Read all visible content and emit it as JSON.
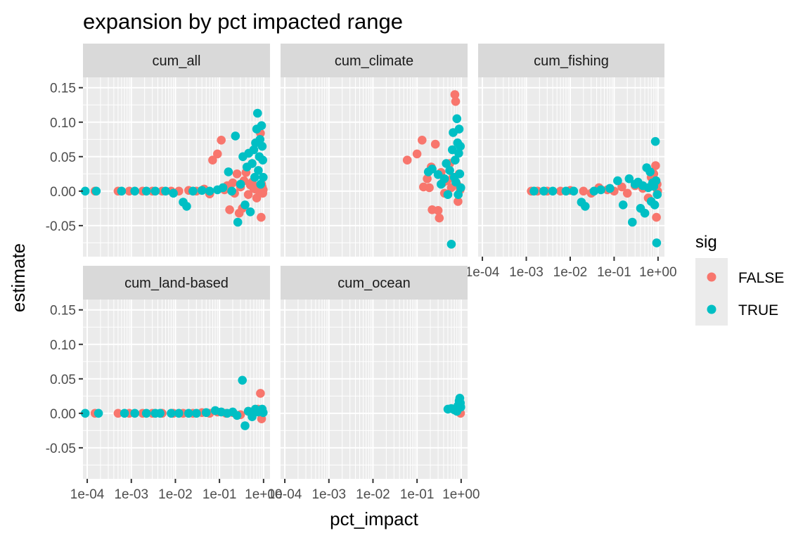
{
  "chart_data": {
    "type": "scatter",
    "title": "expansion by pct impacted range",
    "xlabel": "pct_impact",
    "ylabel": "estimate",
    "x_scale": "log10",
    "xlim": [
      8e-05,
      1.4
    ],
    "ylim": [
      -0.095,
      0.165
    ],
    "x_ticks": [
      0.0001,
      0.001,
      0.01,
      0.1,
      1
    ],
    "x_tick_labels": [
      "1e-04",
      "1e-03",
      "1e-02",
      "1e-01",
      "1e+00"
    ],
    "y_ticks": [
      -0.05,
      0.0,
      0.05,
      0.1,
      0.15
    ],
    "y_tick_labels": [
      "-0.05",
      "0.00",
      "0.05",
      "0.10",
      "0.15"
    ],
    "grid": true,
    "legend": {
      "title": "sig",
      "position": "right",
      "entries": [
        {
          "label": "FALSE",
          "color": "#F8766D"
        },
        {
          "label": "TRUE",
          "color": "#00BFC4"
        }
      ]
    },
    "facets": [
      {
        "name": "cum_all",
        "series": [
          {
            "name": "FALSE",
            "points": [
              [
                0.00015,
                0
              ],
              [
                0.0005,
                0
              ],
              [
                0.0009,
                0
              ],
              [
                0.0018,
                0
              ],
              [
                0.003,
                0
              ],
              [
                0.005,
                0
              ],
              [
                0.008,
                0
              ],
              [
                0.012,
                0
              ],
              [
                0.02,
                0.001
              ],
              [
                0.03,
                0
              ],
              [
                0.045,
                0.003
              ],
              [
                0.06,
                -0.004
              ],
              [
                0.07,
                0.045
              ],
              [
                0.09,
                0.054
              ],
              [
                0.11,
                0.074
              ],
              [
                0.13,
                0.002
              ],
              [
                0.15,
                0.008
              ],
              [
                0.17,
                -0.027
              ],
              [
                0.2,
                0.012
              ],
              [
                0.22,
                -0.003
              ],
              [
                0.25,
                0.025
              ],
              [
                0.28,
                -0.032
              ],
              [
                0.3,
                0.006
              ],
              [
                0.33,
                -0.025
              ],
              [
                0.36,
                0.015
              ],
              [
                0.4,
                0.027
              ],
              [
                0.45,
                -0.005
              ],
              [
                0.5,
                0.009
              ],
              [
                0.55,
                0.013
              ],
              [
                0.6,
                0.004
              ],
              [
                0.65,
                0.003
              ],
              [
                0.7,
                -0.01
              ],
              [
                0.75,
                0.002
              ],
              [
                0.8,
                0.007
              ],
              [
                0.85,
                0.084
              ],
              [
                0.88,
                -0.038
              ],
              [
                0.9,
                0.01
              ],
              [
                0.93,
                0.006
              ],
              [
                0.96,
                -0.003
              ],
              [
                0.98,
                0.002
              ]
            ]
          },
          {
            "name": "TRUE",
            "points": [
              [
                9e-05,
                0
              ],
              [
                0.00016,
                0
              ],
              [
                0.0006,
                0
              ],
              [
                0.0012,
                0
              ],
              [
                0.0022,
                0
              ],
              [
                0.0035,
                0
              ],
              [
                0.006,
                0
              ],
              [
                0.009,
                -0.003
              ],
              [
                0.015,
                -0.016
              ],
              [
                0.018,
                -0.022
              ],
              [
                0.025,
                0
              ],
              [
                0.04,
                0.001
              ],
              [
                0.06,
                0
              ],
              [
                0.09,
                0.002
              ],
              [
                0.12,
                0.005
              ],
              [
                0.16,
                0.028
              ],
              [
                0.19,
                0
              ],
              [
                0.23,
                0.08
              ],
              [
                0.26,
                -0.045
              ],
              [
                0.3,
                0.01
              ],
              [
                0.34,
                0.05
              ],
              [
                0.38,
                -0.02
              ],
              [
                0.42,
                0.035
              ],
              [
                0.46,
                0.055
              ],
              [
                0.5,
                -0.03
              ],
              [
                0.55,
                0.04
              ],
              [
                0.6,
                0.06
              ],
              [
                0.63,
                0.02
              ],
              [
                0.66,
                0.07
              ],
              [
                0.7,
                0.09
              ],
              [
                0.73,
                0.113
              ],
              [
                0.76,
                0.03
              ],
              [
                0.8,
                0.05
              ],
              [
                0.83,
                0.075
              ],
              [
                0.86,
                0.01
              ],
              [
                0.9,
                0.095
              ],
              [
                0.93,
                0.065
              ],
              [
                0.96,
                0.045
              ],
              [
                0.98,
                0.02
              ]
            ]
          }
        ]
      },
      {
        "name": "cum_climate",
        "series": [
          {
            "name": "FALSE",
            "points": [
              [
                0.06,
                0.045
              ],
              [
                0.1,
                0.054
              ],
              [
                0.13,
                0.074
              ],
              [
                0.14,
                0.006
              ],
              [
                0.17,
                0.018
              ],
              [
                0.19,
                0.005
              ],
              [
                0.21,
                0.035
              ],
              [
                0.22,
                -0.027
              ],
              [
                0.26,
                0.068
              ],
              [
                0.3,
                -0.028
              ],
              [
                0.32,
                -0.039
              ],
              [
                0.35,
                0.027
              ],
              [
                0.38,
                0.012
              ],
              [
                0.42,
                -0.003
              ],
              [
                0.48,
                0.015
              ],
              [
                0.55,
                0.04
              ],
              [
                0.6,
                0.005
              ],
              [
                0.65,
                0.02
              ],
              [
                0.72,
                0.14
              ],
              [
                0.75,
                0.13
              ],
              [
                0.8,
                0.01
              ],
              [
                0.85,
                -0.015
              ],
              [
                0.9,
                0.025
              ],
              [
                0.95,
                0.002
              ]
            ]
          },
          {
            "name": "TRUE",
            "points": [
              [
                0.18,
                0.028
              ],
              [
                0.22,
                0.032
              ],
              [
                0.3,
                0.024
              ],
              [
                0.35,
                0.01
              ],
              [
                0.42,
                0.018
              ],
              [
                0.46,
                0.04
              ],
              [
                0.5,
                -0.005
              ],
              [
                0.55,
                0.03
              ],
              [
                0.6,
                -0.077
              ],
              [
                0.63,
                0.06
              ],
              [
                0.66,
                0.085
              ],
              [
                0.7,
                0.02
              ],
              [
                0.73,
                0.045
              ],
              [
                0.76,
                0.013
              ],
              [
                0.8,
                0.105
              ],
              [
                0.83,
                0.07
              ],
              [
                0.86,
                -0.005
              ],
              [
                0.88,
                0.055
              ],
              [
                0.9,
                0.09
              ],
              [
                0.93,
                0.025
              ],
              [
                0.96,
                0.065
              ],
              [
                0.98,
                0.005
              ]
            ]
          }
        ]
      },
      {
        "name": "cum_fishing",
        "series": [
          {
            "name": "FALSE",
            "points": [
              [
                0.0013,
                0
              ],
              [
                0.0018,
                0
              ],
              [
                0.003,
                0
              ],
              [
                0.006,
                0
              ],
              [
                0.01,
                0.001
              ],
              [
                0.02,
                0
              ],
              [
                0.03,
                -0.003
              ],
              [
                0.045,
                0.005
              ],
              [
                0.07,
                0.002
              ],
              [
                0.1,
                0
              ],
              [
                0.15,
                0.006
              ],
              [
                0.2,
                -0.003
              ],
              [
                0.3,
                0.008
              ],
              [
                0.45,
                0.004
              ],
              [
                0.6,
                -0.01
              ],
              [
                0.7,
                0.02
              ],
              [
                0.8,
                0.025
              ],
              [
                0.88,
                0.037
              ],
              [
                0.92,
                -0.038
              ],
              [
                0.95,
                0.01
              ],
              [
                0.98,
                0
              ]
            ]
          },
          {
            "name": "TRUE",
            "points": [
              [
                0.0015,
                0
              ],
              [
                0.0025,
                0
              ],
              [
                0.004,
                0
              ],
              [
                0.008,
                0
              ],
              [
                0.012,
                0
              ],
              [
                0.018,
                -0.016
              ],
              [
                0.022,
                -0.022
              ],
              [
                0.035,
                0
              ],
              [
                0.05,
                0.002
              ],
              [
                0.08,
                0.004
              ],
              [
                0.12,
                0.015
              ],
              [
                0.16,
                -0.02
              ],
              [
                0.22,
                0.018
              ],
              [
                0.26,
                -0.045
              ],
              [
                0.3,
                0.01
              ],
              [
                0.35,
                0.013
              ],
              [
                0.4,
                -0.025
              ],
              [
                0.45,
                0.008
              ],
              [
                0.5,
                -0.032
              ],
              [
                0.55,
                0.034
              ],
              [
                0.6,
                0.005
              ],
              [
                0.66,
                0.028
              ],
              [
                0.7,
                -0.015
              ],
              [
                0.75,
                0.012
              ],
              [
                0.8,
                0.007
              ],
              [
                0.84,
                -0.02
              ],
              [
                0.87,
                0.072
              ],
              [
                0.9,
                0.015
              ],
              [
                0.93,
                -0.075
              ],
              [
                0.96,
                -0.005
              ]
            ]
          }
        ]
      },
      {
        "name": "cum_land-based",
        "series": [
          {
            "name": "FALSE",
            "points": [
              [
                0.00015,
                0
              ],
              [
                0.0005,
                0
              ],
              [
                0.0009,
                0
              ],
              [
                0.0018,
                0
              ],
              [
                0.003,
                0
              ],
              [
                0.005,
                0
              ],
              [
                0.009,
                0
              ],
              [
                0.015,
                0
              ],
              [
                0.025,
                0
              ],
              [
                0.04,
                0.001
              ],
              [
                0.06,
                0
              ],
              [
                0.09,
                0.002
              ],
              [
                0.14,
                0
              ],
              [
                0.2,
                0.001
              ],
              [
                0.3,
                -0.002
              ],
              [
                0.45,
                0.003
              ],
              [
                0.6,
                0.002
              ],
              [
                0.75,
                0.006
              ],
              [
                0.85,
                0.029
              ],
              [
                0.9,
                -0.008
              ],
              [
                0.95,
                0.001
              ]
            ]
          },
          {
            "name": "TRUE",
            "points": [
              [
                9e-05,
                0
              ],
              [
                0.00018,
                0
              ],
              [
                0.0007,
                0
              ],
              [
                0.0012,
                0
              ],
              [
                0.0022,
                0
              ],
              [
                0.0035,
                0
              ],
              [
                0.0045,
                0
              ],
              [
                0.008,
                0
              ],
              [
                0.012,
                0
              ],
              [
                0.02,
                0
              ],
              [
                0.03,
                0
              ],
              [
                0.05,
                0.001
              ],
              [
                0.08,
                0.004
              ],
              [
                0.11,
                0.002
              ],
              [
                0.15,
                0
              ],
              [
                0.2,
                0.002
              ],
              [
                0.25,
                -0.003
              ],
              [
                0.33,
                0.048
              ],
              [
                0.38,
                -0.018
              ],
              [
                0.45,
                0.003
              ],
              [
                0.55,
                -0.005
              ],
              [
                0.65,
                0.006
              ],
              [
                0.75,
                0.002
              ],
              [
                0.85,
                0.004
              ],
              [
                0.93,
                0.006
              ],
              [
                0.98,
                0.001
              ]
            ]
          }
        ]
      },
      {
        "name": "cum_ocean",
        "series": [
          {
            "name": "FALSE",
            "points": [
              [
                0.97,
                0
              ]
            ]
          },
          {
            "name": "TRUE",
            "points": [
              [
                0.5,
                0.006
              ],
              [
                0.6,
                0.007
              ],
              [
                0.7,
                0.005
              ],
              [
                0.8,
                0.003
              ],
              [
                0.85,
                0.011
              ],
              [
                0.9,
                0.018
              ],
              [
                0.93,
                0.022
              ],
              [
                0.96,
                0.015
              ],
              [
                0.98,
                0.009
              ]
            ]
          }
        ]
      }
    ]
  }
}
